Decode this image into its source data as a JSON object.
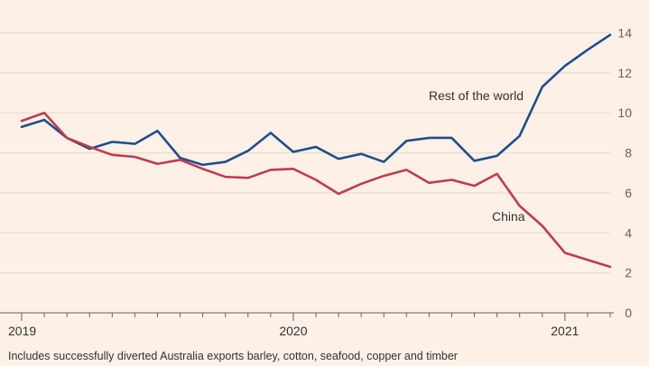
{
  "chart_data": {
    "type": "line",
    "x": [
      "2019-01",
      "2019-02",
      "2019-03",
      "2019-04",
      "2019-05",
      "2019-06",
      "2019-07",
      "2019-08",
      "2019-09",
      "2019-10",
      "2019-11",
      "2019-12",
      "2020-01",
      "2020-02",
      "2020-03",
      "2020-04",
      "2020-05",
      "2020-06",
      "2020-07",
      "2020-08",
      "2020-09",
      "2020-10",
      "2020-11",
      "2020-12",
      "2021-01",
      "2021-02",
      "2021-03"
    ],
    "series": [
      {
        "name": "Rest of the world",
        "color": "#1f4e8c",
        "values": [
          9.3,
          9.65,
          8.75,
          8.2,
          8.55,
          8.45,
          9.1,
          7.75,
          7.4,
          7.55,
          8.1,
          9.0,
          8.05,
          8.3,
          7.7,
          7.95,
          7.55,
          8.6,
          8.75,
          8.75,
          7.6,
          7.85,
          8.85,
          11.3,
          12.35,
          13.15,
          13.9
        ]
      },
      {
        "name": "China",
        "color": "#c23a4d",
        "values": [
          9.6,
          10.0,
          8.75,
          8.3,
          7.9,
          7.8,
          7.45,
          7.65,
          7.2,
          6.8,
          6.75,
          7.15,
          7.2,
          6.65,
          5.95,
          6.45,
          6.85,
          7.15,
          6.5,
          6.65,
          6.35,
          6.95,
          5.35,
          4.35,
          3.0,
          2.65,
          2.3
        ]
      }
    ],
    "yticks": [
      "0",
      "2",
      "4",
      "6",
      "8",
      "10",
      "12",
      "14"
    ],
    "ylim": [
      0,
      14
    ],
    "xtick_labels": [
      {
        "label": "2019",
        "at": "2019-01"
      },
      {
        "label": "2020",
        "at": "2020-01"
      },
      {
        "label": "2021",
        "at": "2021-01"
      }
    ],
    "grid": "horizontal",
    "annotations": [
      "Rest of the world",
      "China"
    ]
  },
  "footnote": "Includes successfully diverted Australia exports barley, cotton, seafood, copper and timber"
}
